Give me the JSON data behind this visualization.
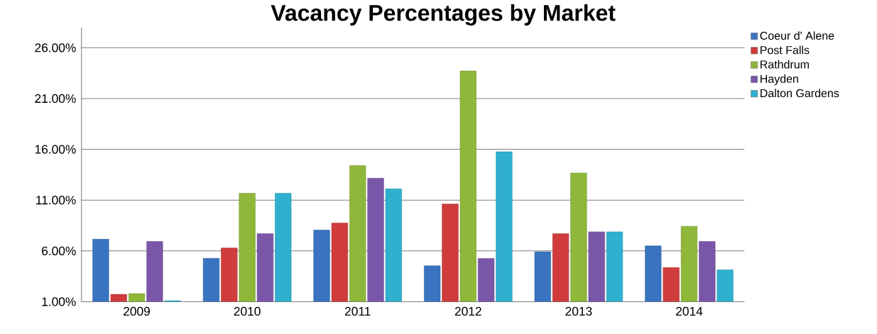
{
  "chart_data": {
    "type": "bar",
    "title": "Vacancy Percentages by Market",
    "categories": [
      "2009",
      "2010",
      "2011",
      "2012",
      "2013",
      "2014"
    ],
    "series": [
      {
        "name": "Coeur d' Alene",
        "color": "#3a74c0",
        "values": [
          7.15,
          5.27,
          8.06,
          4.53,
          5.91,
          6.5
        ]
      },
      {
        "name": "Post Falls",
        "color": "#d03b3b",
        "values": [
          1.72,
          6.29,
          8.75,
          10.62,
          7.69,
          4.36
        ]
      },
      {
        "name": "Rathdrum",
        "color": "#8fb73a",
        "values": [
          1.8,
          11.67,
          14.4,
          23.71,
          13.67,
          8.42
        ]
      },
      {
        "name": "Hayden",
        "color": "#7a56a8",
        "values": [
          6.93,
          7.7,
          13.16,
          5.26,
          7.88,
          6.93
        ]
      },
      {
        "name": "Dalton Gardens",
        "color": "#2fb0cf",
        "values": [
          1.1,
          11.67,
          12.11,
          15.76,
          7.88,
          4.13
        ]
      }
    ],
    "ylim": [
      1,
      28
    ],
    "yticks": [
      {
        "value": 1,
        "label": "1.00%"
      },
      {
        "value": 6,
        "label": "6.00%"
      },
      {
        "value": 11,
        "label": "11.00%"
      },
      {
        "value": 16,
        "label": "16.00%"
      },
      {
        "value": 21,
        "label": "21.00%"
      },
      {
        "value": 26,
        "label": "26.00%"
      }
    ],
    "grid": "y",
    "legend": "top right"
  }
}
